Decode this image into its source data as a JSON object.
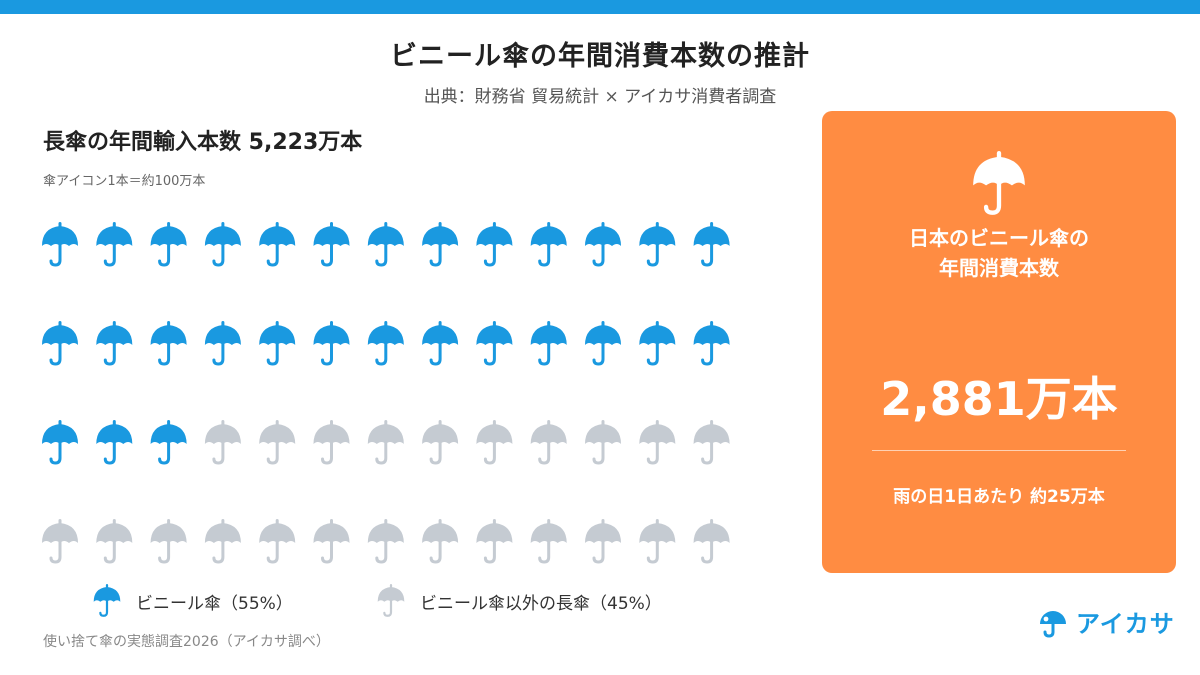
{
  "title": "ビニール傘の年間消費本数の推計",
  "subtitle": "出典：財務省 貿易統計 × アイカサ消費者調査",
  "left": {
    "heading": "長傘の年間輸入本数 5,223万本",
    "note": "傘アイコン1本＝約100万本"
  },
  "colors": {
    "accent": "#1a99e0",
    "gray": "#c5cbd2",
    "card": "#ff8c42"
  },
  "chart_data": {
    "type": "pictograph",
    "rows": 4,
    "cols": 13,
    "series": [
      {
        "name": "ビニール傘（55%）",
        "count": 29,
        "color": "#1a99e0"
      },
      {
        "name": "ビニール傘以外の長傘（45%）",
        "count": 23,
        "color": "#c5cbd2"
      }
    ]
  },
  "legend": {
    "vinyl_label": "ビニール傘（55%）",
    "other_label": "ビニール傘以外の長傘（45%）"
  },
  "footnote": "使い捨て傘の実態調査2026（アイカサ調べ）",
  "card": {
    "title_line1": "日本のビニール傘の",
    "title_line2": "年間消費本数",
    "value": "2,881万本",
    "rain_day": "雨の日1日あたり 約25万本"
  },
  "logo": {
    "text": "アイカサ"
  }
}
